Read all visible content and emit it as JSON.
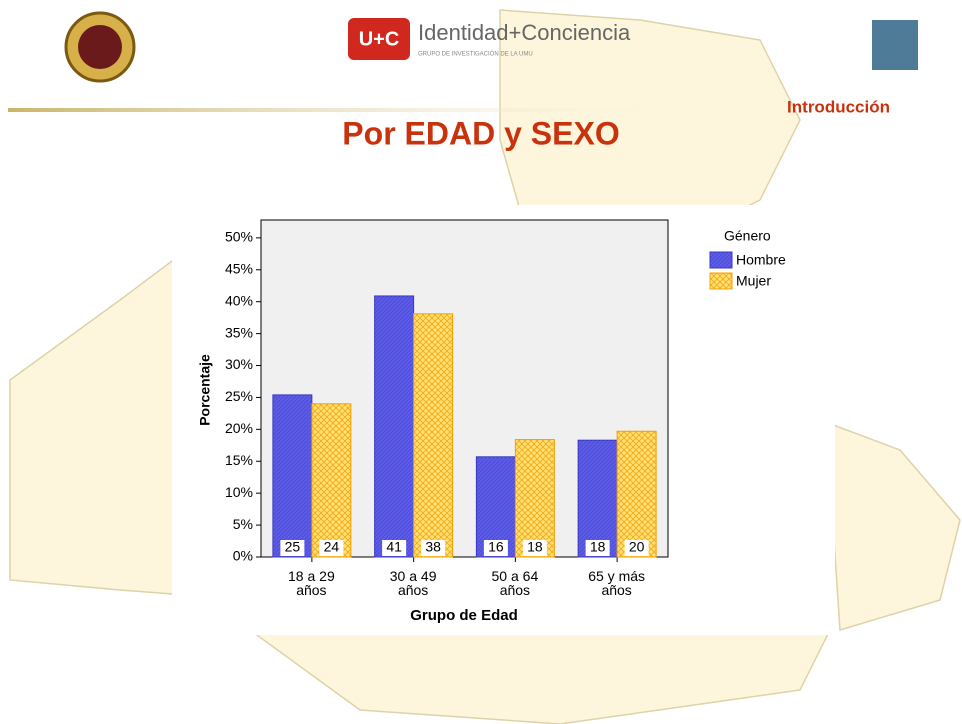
{
  "header": {
    "logo_text": "Identidad+Conciencia",
    "logo_subtext": "GRUPO DE INVESTIGACIÓN DE LA UMU",
    "logo_mark": "U+C",
    "section": "Introducción"
  },
  "chart_data": {
    "type": "bar",
    "title": "Por EDAD y SEXO",
    "categories": [
      "18 a 29 años",
      "30 a 49 años",
      "50 a 64 años",
      "65 y más años"
    ],
    "series": [
      {
        "name": "Hombre",
        "color": "#5c5ce8",
        "values": [
          25.4,
          40.9,
          15.7,
          18.3
        ],
        "value_labels": [
          "25",
          "41",
          "16",
          "18"
        ]
      },
      {
        "name": "Mujer",
        "color": "#ffe070",
        "values": [
          24.0,
          38.1,
          18.4,
          19.7
        ],
        "value_labels": [
          "24",
          "38",
          "18",
          "20"
        ]
      }
    ],
    "ylim": [
      0,
      52.8
    ],
    "yticks": [
      {
        "value": 0,
        "label": "0%"
      },
      {
        "value": 5,
        "label": "5%"
      },
      {
        "value": 10,
        "label": "10%"
      },
      {
        "value": 15,
        "label": "15%"
      },
      {
        "value": 20,
        "label": "20%"
      },
      {
        "value": 25,
        "label": "25%"
      },
      {
        "value": 30,
        "label": "30%"
      },
      {
        "value": 35,
        "label": "35%"
      },
      {
        "value": 40,
        "label": "40%"
      },
      {
        "value": 45,
        "label": "45%"
      },
      {
        "value": 50,
        "label": "50%"
      }
    ],
    "x_label": "Grupo de Edad",
    "y_label": "Porcentaje",
    "legend_title": "Género",
    "legend": "right",
    "grid": false
  }
}
